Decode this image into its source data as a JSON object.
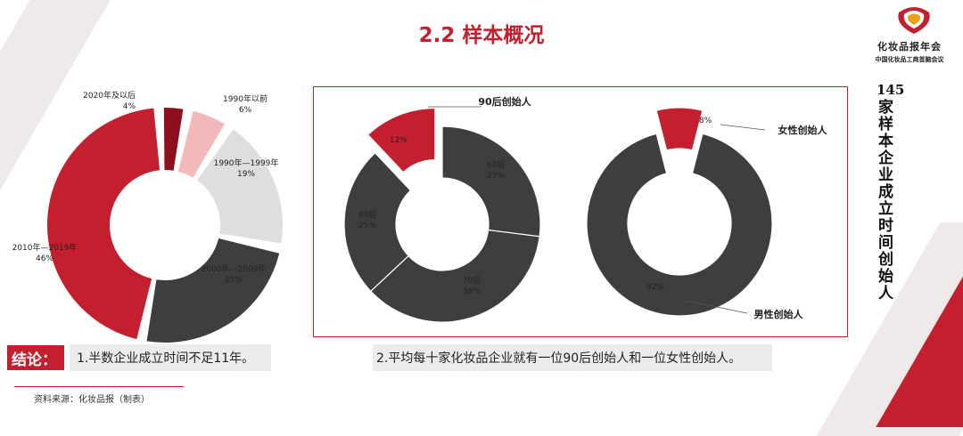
{
  "header": {
    "title": "2.2 样本概况"
  },
  "brand": {
    "org": "化妆品报年会",
    "org_sub": "中国化妆品工商首脑会议"
  },
  "side": {
    "number": "145",
    "text": "家样本企业成立时间  创始人"
  },
  "colors": {
    "red": "#c41f2f",
    "dark_red": "#8e0f1e",
    "pink": "#f2b9bb",
    "light_gray": "#dedede",
    "dark_gray": "#3e3e3e",
    "divider": "#c41f2f"
  },
  "chart_data": [
    {
      "type": "pie",
      "variant": "donut",
      "categories": [
        "2020年及以后",
        "1990年以前",
        "1990年—1999年",
        "2000年—2009年",
        "2010年—2019年"
      ],
      "values": [
        4,
        6,
        19,
        25,
        46
      ],
      "value_labels": [
        "4%",
        "6%",
        "19%",
        "25%",
        "46%"
      ],
      "colors": [
        "#8e0f1e",
        "#f2b9bb",
        "#dedede",
        "#3e3e3e",
        "#c41f2f"
      ],
      "exploded": true
    },
    {
      "type": "pie",
      "variant": "donut",
      "categories": [
        "90后",
        "60后",
        "70后",
        "80后"
      ],
      "values": [
        12,
        27,
        36,
        25
      ],
      "value_labels": [
        "12%",
        "27%",
        "36%",
        "25%"
      ],
      "colors": [
        "#c41f2f",
        "#3e3e3e",
        "#3e3e3e",
        "#3e3e3e"
      ],
      "callout": "90后创始人",
      "exploded_index": 0
    },
    {
      "type": "pie",
      "variant": "donut",
      "categories": [
        "女性创始人",
        "男性创始人"
      ],
      "values": [
        8,
        92
      ],
      "value_labels": [
        "8%",
        "92%"
      ],
      "colors": [
        "#c41f2f",
        "#3e3e3e"
      ],
      "exploded_index": 0
    }
  ],
  "conclusion": {
    "label": "结论：",
    "findings": [
      "1.半数企业成立时间不足11年。",
      "2.平均每十家化妆品企业就有一位90后创始人和一位女性创始人。"
    ]
  },
  "footer": {
    "source": "资料来源：化妆品报（制表）"
  }
}
